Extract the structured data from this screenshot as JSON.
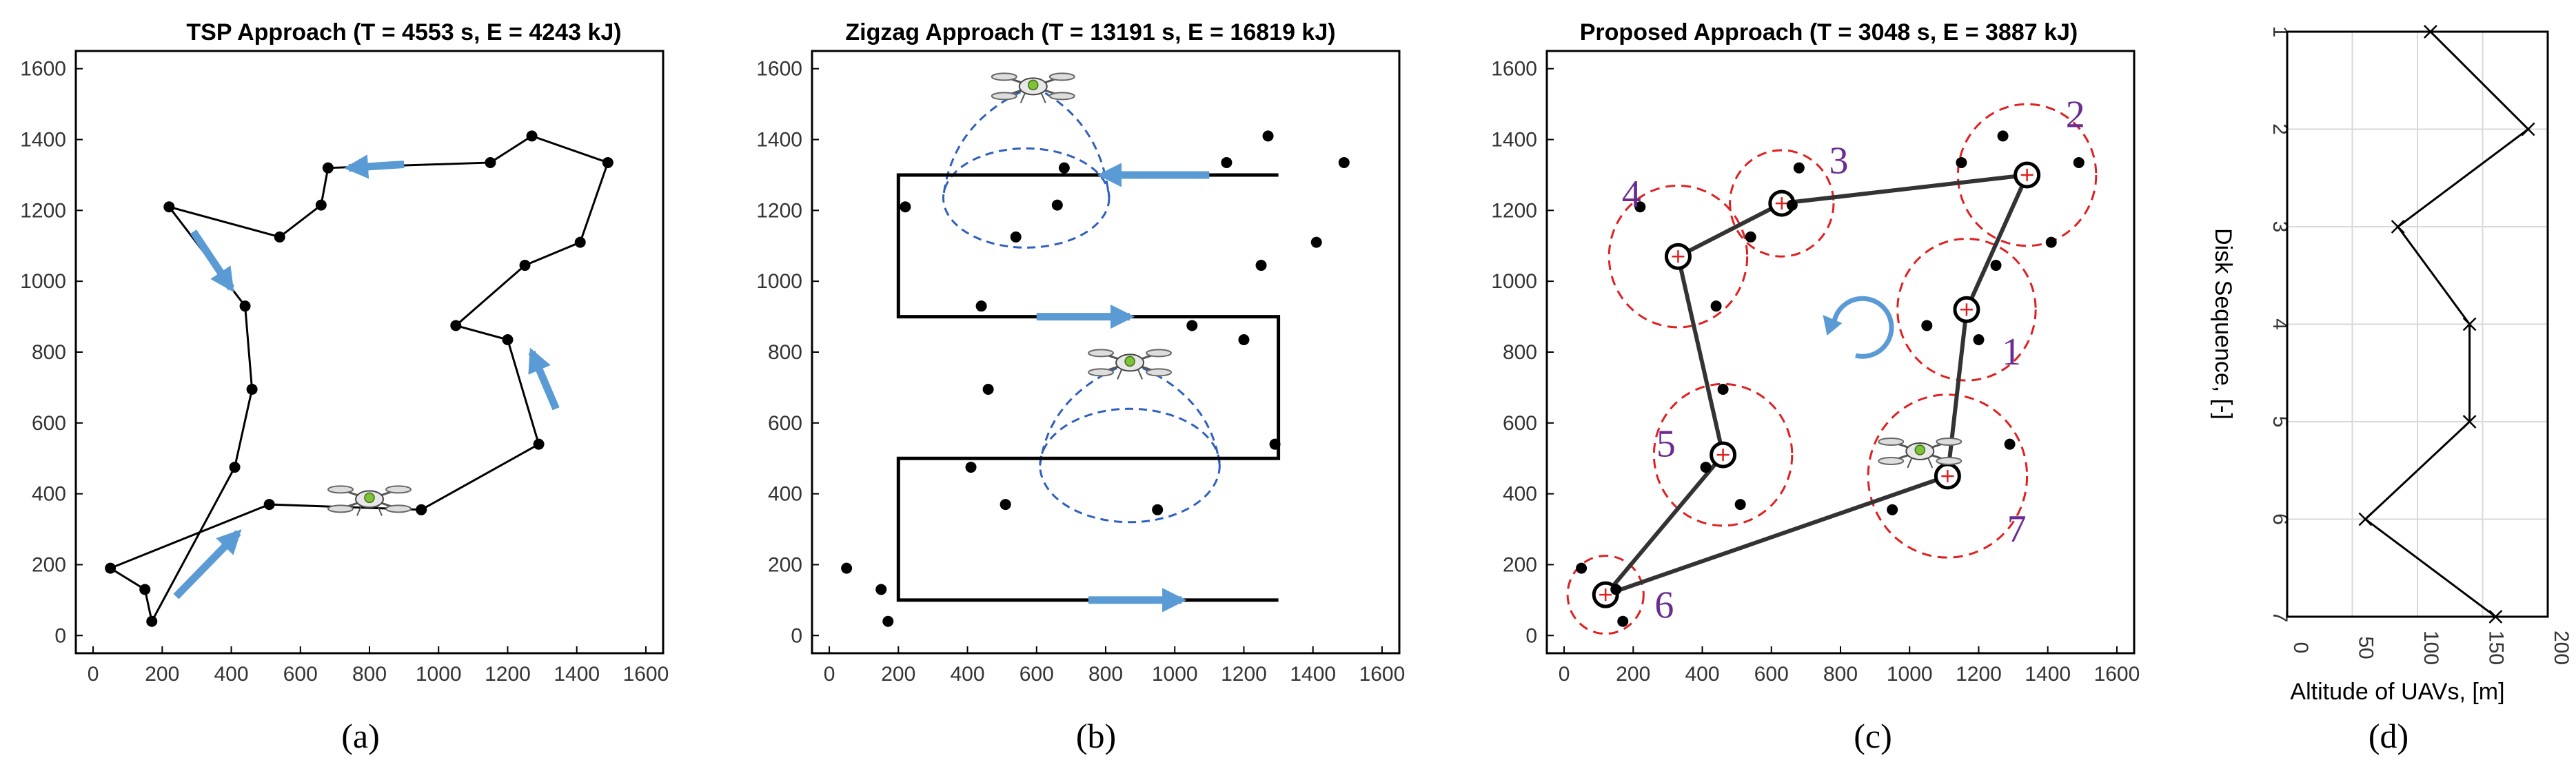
{
  "chart_data": [
    {
      "id": "a",
      "type": "line",
      "title": "TSP Approach (T = 4553 s, E = 4243 kJ)",
      "caption": "(a)",
      "xlim": [
        -50,
        1650
      ],
      "ylim": [
        -50,
        1650
      ],
      "xticks": [
        0,
        200,
        400,
        600,
        800,
        1000,
        1200,
        1400,
        1600
      ],
      "yticks": [
        0,
        200,
        400,
        600,
        800,
        1000,
        1200,
        1400,
        1600
      ],
      "points": [
        [
          50,
          190
        ],
        [
          150,
          130
        ],
        [
          170,
          40
        ],
        [
          410,
          475
        ],
        [
          460,
          695
        ],
        [
          440,
          930
        ],
        [
          220,
          1210
        ],
        [
          540,
          1125
        ],
        [
          660,
          1215
        ],
        [
          680,
          1320
        ],
        [
          1150,
          1335
        ],
        [
          1270,
          1410
        ],
        [
          1490,
          1335
        ],
        [
          1410,
          1110
        ],
        [
          1250,
          1045
        ],
        [
          1050,
          875
        ],
        [
          1200,
          835
        ],
        [
          1290,
          540
        ],
        [
          950,
          355
        ],
        [
          510,
          370
        ],
        [
          800,
          360
        ]
      ],
      "path": [
        [
          170,
          40
        ],
        [
          150,
          130
        ],
        [
          50,
          190
        ],
        [
          510,
          370
        ],
        [
          950,
          355
        ],
        [
          1290,
          540
        ],
        [
          1200,
          835
        ],
        [
          1050,
          875
        ],
        [
          1250,
          1045
        ],
        [
          1410,
          1110
        ],
        [
          1490,
          1335
        ],
        [
          1270,
          1410
        ],
        [
          1150,
          1335
        ],
        [
          680,
          1320
        ],
        [
          660,
          1215
        ],
        [
          540,
          1125
        ],
        [
          220,
          1210
        ],
        [
          440,
          930
        ],
        [
          460,
          695
        ],
        [
          410,
          475
        ],
        [
          170,
          40
        ]
      ],
      "arrows": [
        [
          [
            240,
            110
          ],
          [
            420,
            290
          ]
        ],
        [
          [
            900,
            1330
          ],
          [
            740,
            1320
          ]
        ],
        [
          [
            290,
            1140
          ],
          [
            400,
            980
          ]
        ],
        [
          [
            1340,
            640
          ],
          [
            1270,
            800
          ]
        ]
      ],
      "drones": [
        [
          800,
          385
        ]
      ]
    },
    {
      "id": "b",
      "type": "line",
      "title": "Zigzag Approach (T = 13191 s, E = 16819 kJ)",
      "caption": "(b)",
      "xlim": [
        -50,
        1650
      ],
      "ylim": [
        -50,
        1650
      ],
      "xticks": [
        0,
        200,
        400,
        600,
        800,
        1000,
        1200,
        1400,
        1600
      ],
      "yticks": [
        0,
        200,
        400,
        600,
        800,
        1000,
        1200,
        1400,
        1600
      ],
      "points": [
        [
          50,
          190
        ],
        [
          150,
          130
        ],
        [
          170,
          40
        ],
        [
          410,
          475
        ],
        [
          460,
          695
        ],
        [
          440,
          930
        ],
        [
          220,
          1210
        ],
        [
          540,
          1125
        ],
        [
          660,
          1215
        ],
        [
          680,
          1320
        ],
        [
          1150,
          1335
        ],
        [
          1270,
          1410
        ],
        [
          1490,
          1335
        ],
        [
          1410,
          1110
        ],
        [
          1250,
          1045
        ],
        [
          1050,
          875
        ],
        [
          1200,
          835
        ],
        [
          1290,
          540
        ],
        [
          950,
          355
        ],
        [
          510,
          370
        ]
      ],
      "path": [
        [
          1300,
          100
        ],
        [
          200,
          100
        ],
        [
          200,
          500
        ],
        [
          1300,
          500
        ],
        [
          1300,
          900
        ],
        [
          200,
          900
        ],
        [
          200,
          1300
        ],
        [
          1300,
          1300
        ]
      ],
      "arrows": [
        [
          [
            750,
            100
          ],
          [
            1020,
            100
          ]
        ],
        [
          [
            600,
            900
          ],
          [
            870,
            900
          ]
        ],
        [
          [
            1100,
            1300
          ],
          [
            790,
            1300
          ]
        ]
      ],
      "drones": [
        [
          590,
          1550
        ],
        [
          870,
          770
        ]
      ],
      "cones": [
        {
          "apex": [
            590,
            1550
          ],
          "center": [
            570,
            1235
          ],
          "rx": 240,
          "ry": 140
        },
        {
          "apex": [
            870,
            770
          ],
          "center": [
            870,
            480
          ],
          "rx": 260,
          "ry": 160
        }
      ]
    },
    {
      "id": "c",
      "type": "line",
      "title": "Proposed Approach (T = 3048 s, E = 3887 kJ)",
      "caption": "(c)",
      "xlim": [
        -50,
        1650
      ],
      "ylim": [
        -50,
        1650
      ],
      "xticks": [
        0,
        200,
        400,
        600,
        800,
        1000,
        1200,
        1400,
        1600
      ],
      "yticks": [
        0,
        200,
        400,
        600,
        800,
        1000,
        1200,
        1400,
        1600
      ],
      "points": [
        [
          50,
          190
        ],
        [
          150,
          130
        ],
        [
          170,
          40
        ],
        [
          410,
          475
        ],
        [
          460,
          695
        ],
        [
          440,
          930
        ],
        [
          220,
          1210
        ],
        [
          540,
          1125
        ],
        [
          660,
          1215
        ],
        [
          680,
          1320
        ],
        [
          1150,
          1335
        ],
        [
          1270,
          1410
        ],
        [
          1490,
          1335
        ],
        [
          1410,
          1110
        ],
        [
          1250,
          1045
        ],
        [
          1050,
          875
        ],
        [
          1200,
          835
        ],
        [
          1290,
          540
        ],
        [
          950,
          355
        ],
        [
          510,
          370
        ]
      ],
      "disks": [
        {
          "label": "1",
          "center": [
            1165,
            920
          ],
          "radius": 200
        },
        {
          "label": "2",
          "center": [
            1340,
            1300
          ],
          "radius": 200
        },
        {
          "label": "3",
          "center": [
            630,
            1220
          ],
          "radius": 150
        },
        {
          "label": "4",
          "center": [
            330,
            1070
          ],
          "radius": 200
        },
        {
          "label": "5",
          "center": [
            460,
            510
          ],
          "radius": 200
        },
        {
          "label": "6",
          "center": [
            120,
            115
          ],
          "radius": 110
        },
        {
          "label": "7",
          "center": [
            1110,
            450
          ],
          "radius": 230
        }
      ],
      "path": [
        [
          1165,
          920
        ],
        [
          1340,
          1300
        ],
        [
          630,
          1220
        ],
        [
          330,
          1070
        ],
        [
          460,
          510
        ],
        [
          120,
          115
        ],
        [
          1110,
          450
        ],
        [
          1165,
          920
        ]
      ],
      "drones": [
        [
          1030,
          520
        ]
      ],
      "rotation": "counter-clockwise"
    },
    {
      "id": "d",
      "type": "line",
      "caption": "(d)",
      "xlabel": "Altitude of UAVs, [m]",
      "ylabel": "Disk Sequence, [-]",
      "xlim": [
        0,
        200
      ],
      "ylim": [
        1,
        7
      ],
      "xticks": [
        0,
        50,
        100,
        150,
        200
      ],
      "xtick_labels": [
        "0",
        "50",
        "100",
        "150",
        "200"
      ],
      "yticks": [
        1,
        2,
        3,
        4,
        5,
        6,
        7
      ],
      "ytick_labels": [
        "1",
        "2",
        "3",
        "4",
        "5",
        "6",
        "7"
      ],
      "grid": true,
      "series": [
        {
          "name": "altitude",
          "x": [
            110,
            185,
            85,
            140,
            140,
            60,
            160
          ],
          "y": [
            1,
            2,
            3,
            4,
            5,
            6,
            7
          ]
        }
      ]
    }
  ]
}
